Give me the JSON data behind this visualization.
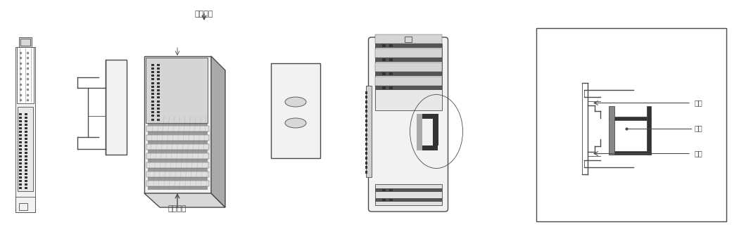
{
  "bg_color": "#ffffff",
  "lc": "#4a4a4a",
  "lc2": "#888888",
  "fc_light": "#f2f2f2",
  "fc_mid": "#d8d8d8",
  "fc_dark": "#aaaaaa",
  "fc_black": "#333333",
  "label_top": "解扣压杆",
  "label_ka_kou": "卡扣",
  "label_dao_gui": "导轨",
  "fig_width": 10.5,
  "fig_height": 3.5,
  "dpi": 100
}
